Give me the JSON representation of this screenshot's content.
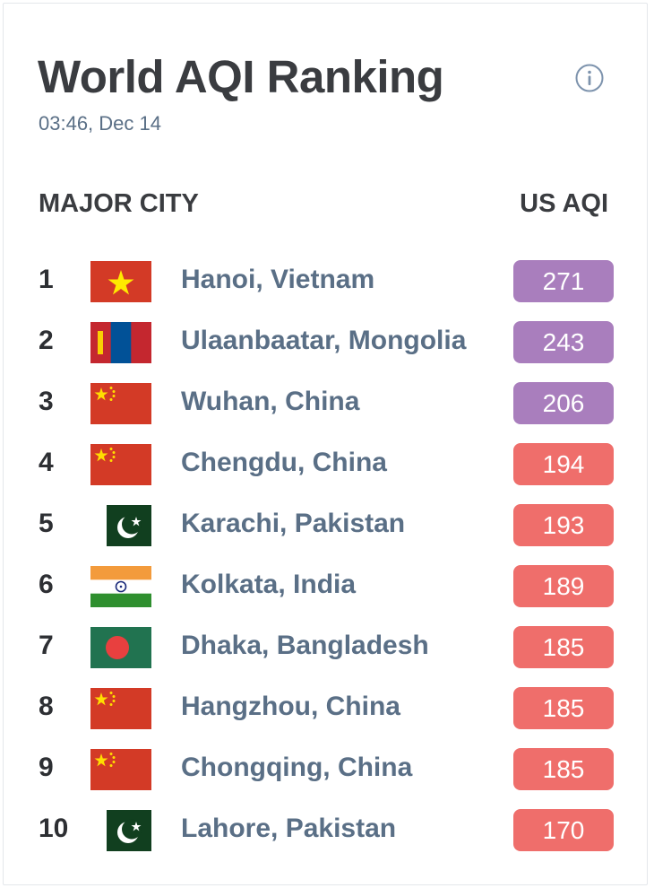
{
  "title": "World AQI Ranking",
  "timestamp": "03:46, Dec 14",
  "header": {
    "city_label": "MAJOR CITY",
    "aqi_label": "US AQI"
  },
  "colors": {
    "very_unhealthy": "#a97ebd",
    "unhealthy": "#ef6e6b"
  },
  "rows": [
    {
      "rank": "1",
      "city": "Hanoi, Vietnam",
      "aqi": "271",
      "flag": "vietnam",
      "level": "very_unhealthy"
    },
    {
      "rank": "2",
      "city": "Ulaanbaatar, Mongolia",
      "aqi": "243",
      "flag": "mongolia",
      "level": "very_unhealthy"
    },
    {
      "rank": "3",
      "city": "Wuhan, China",
      "aqi": "206",
      "flag": "china",
      "level": "very_unhealthy"
    },
    {
      "rank": "4",
      "city": "Chengdu, China",
      "aqi": "194",
      "flag": "china",
      "level": "unhealthy"
    },
    {
      "rank": "5",
      "city": "Karachi, Pakistan",
      "aqi": "193",
      "flag": "pakistan",
      "level": "unhealthy"
    },
    {
      "rank": "6",
      "city": "Kolkata, India",
      "aqi": "189",
      "flag": "india",
      "level": "unhealthy"
    },
    {
      "rank": "7",
      "city": "Dhaka, Bangladesh",
      "aqi": "185",
      "flag": "bangladesh",
      "level": "unhealthy"
    },
    {
      "rank": "8",
      "city": "Hangzhou, China",
      "aqi": "185",
      "flag": "china",
      "level": "unhealthy"
    },
    {
      "rank": "9",
      "city": "Chongqing, China",
      "aqi": "185",
      "flag": "china",
      "level": "unhealthy"
    },
    {
      "rank": "10",
      "city": "Lahore, Pakistan",
      "aqi": "170",
      "flag": "pakistan",
      "level": "unhealthy"
    }
  ]
}
